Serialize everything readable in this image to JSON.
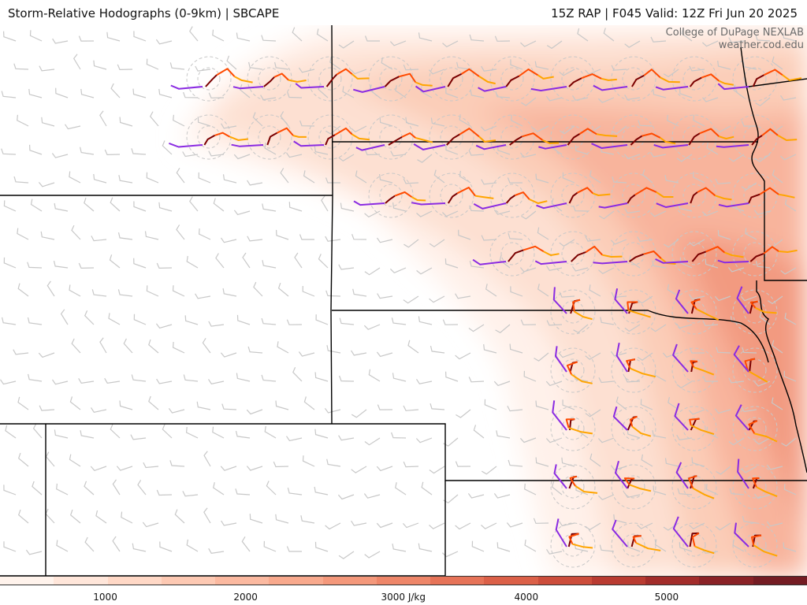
{
  "title": {
    "left": "Storm-Relative Hodographs (0-9km) | SBCAPE",
    "right": "15Z RAP | F045 Valid: 12Z Fri Jun 20 2025"
  },
  "credit": {
    "line1": "College of DuPage NEXLAB",
    "line2": "weather.cod.edu"
  },
  "colorbar": {
    "labels": [
      {
        "value": 1000,
        "text": "1000"
      },
      {
        "value": 2000,
        "text": "2000"
      },
      {
        "value": 3000,
        "text": "3000 J/kg"
      },
      {
        "value": 4000,
        "text": "4000"
      },
      {
        "value": 5000,
        "text": "5000"
      }
    ],
    "min": 250,
    "max": 6000,
    "colors": [
      "#fff3ec",
      "#ffe6da",
      "#ffd8c6",
      "#fdc9b3",
      "#fbb9a0",
      "#f8a98d",
      "#f4987b",
      "#ee8669",
      "#e67358",
      "#db6048",
      "#cc4d3b",
      "#b93b31",
      "#a22c2a",
      "#8a2226",
      "#741c23"
    ]
  },
  "legend_colors": {
    "hodo_0_1km": "#7a0000",
    "hodo_1_3km": "#ff4a00",
    "hodo_3_6km": "#ffa500",
    "hodo_6_9km": "#8a2be2",
    "barb": "#c8c8c8",
    "border": "#000000"
  }
}
